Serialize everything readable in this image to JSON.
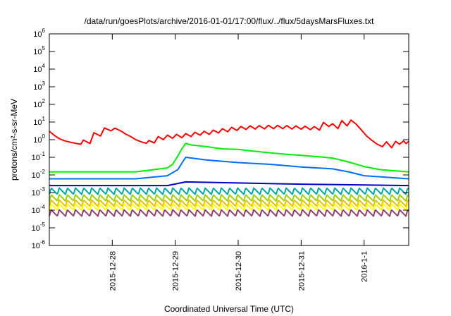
{
  "chart_data": {
    "type": "line",
    "title": "/data/run/goesPlots/archive/2016-01-01/17:00/flux/../flux/5daysMarsFluxes.txt",
    "xlabel": "Coordinated Universal Time (UTC)",
    "ylabel": "protons/cm²-s-sr-MeV",
    "yscale": "log",
    "ylim": [
      1e-06,
      1000000.0
    ],
    "ytick_labels": [
      {
        "base": "10",
        "exp": "-6",
        "value": 1e-06
      },
      {
        "base": "10",
        "exp": "-5",
        "value": 1e-05
      },
      {
        "base": "10",
        "exp": "-4",
        "value": 0.0001
      },
      {
        "base": "10",
        "exp": "-3",
        "value": 0.001
      },
      {
        "base": "10",
        "exp": "-2",
        "value": 0.01
      },
      {
        "base": "10",
        "exp": "-1",
        "value": 0.1
      },
      {
        "base": "10",
        "exp": "0",
        "value": 1
      },
      {
        "base": "10",
        "exp": "1",
        "value": 10
      },
      {
        "base": "10",
        "exp": "2",
        "value": 100
      },
      {
        "base": "10",
        "exp": "3",
        "value": 1000
      },
      {
        "base": "10",
        "exp": "4",
        "value": 10000
      },
      {
        "base": "10",
        "exp": "5",
        "value": 100000
      },
      {
        "base": "10",
        "exp": "6",
        "value": 1000000
      }
    ],
    "xlim": [
      "2015-12-27T00:00Z",
      "2016-01-01T17:00Z"
    ],
    "xtick_labels": [
      {
        "label": "2015-12-28",
        "date": "2015-12-28T00:00Z"
      },
      {
        "label": "2015-12-29",
        "date": "2015-12-29T00:00Z"
      },
      {
        "label": "2015-12-30",
        "date": "2015-12-30T00:00Z"
      },
      {
        "label": "2015-12-31",
        "date": "2015-12-31T00:00Z"
      },
      {
        "label": "2016-1-1",
        "date": "2016-01-01T00:00Z"
      }
    ],
    "grid": false,
    "legend": "none",
    "series": [
      {
        "color": "#ff0000",
        "points": [
          [
            "2015-12-27T00:00Z",
            3.0
          ],
          [
            "2015-12-27T02:00Z",
            1.7
          ],
          [
            "2015-12-27T04:00Z",
            1.1
          ],
          [
            "2015-12-27T06:00Z",
            0.85
          ],
          [
            "2015-12-27T08:00Z",
            0.72
          ],
          [
            "2015-12-27T10:00Z",
            0.62
          ],
          [
            "2015-12-27T12:00Z",
            0.55
          ],
          [
            "2015-12-27T13:00Z",
            0.95
          ],
          [
            "2015-12-27T15:30Z",
            0.6
          ],
          [
            "2015-12-27T17:00Z",
            2.5
          ],
          [
            "2015-12-27T19:30Z",
            1.6
          ],
          [
            "2015-12-27T21:00Z",
            4.6
          ],
          [
            "2015-12-27T23:30Z",
            3.2
          ],
          [
            "2015-12-28T01:00Z",
            4.5
          ],
          [
            "2015-12-28T03:30Z",
            3.0
          ],
          [
            "2015-12-28T05:00Z",
            2.1
          ],
          [
            "2015-12-28T07:00Z",
            1.5
          ],
          [
            "2015-12-28T09:00Z",
            1.0
          ],
          [
            "2015-12-28T11:00Z",
            0.75
          ],
          [
            "2015-12-28T13:00Z",
            0.62
          ],
          [
            "2015-12-28T14:00Z",
            0.9
          ],
          [
            "2015-12-28T16:00Z",
            0.65
          ],
          [
            "2015-12-28T17:30Z",
            1.5
          ],
          [
            "2015-12-28T19:30Z",
            1.0
          ],
          [
            "2015-12-28T21:00Z",
            1.8
          ],
          [
            "2015-12-28T23:00Z",
            1.2
          ],
          [
            "2015-12-29T00:30Z",
            2.0
          ],
          [
            "2015-12-29T02:30Z",
            1.3
          ],
          [
            "2015-12-29T04:00Z",
            2.2
          ],
          [
            "2015-12-29T06:00Z",
            1.5
          ],
          [
            "2015-12-29T07:30Z",
            2.6
          ],
          [
            "2015-12-29T09:30Z",
            1.8
          ],
          [
            "2015-12-29T11:00Z",
            3.0
          ],
          [
            "2015-12-29T13:00Z",
            2.0
          ],
          [
            "2015-12-29T14:30Z",
            3.5
          ],
          [
            "2015-12-29T16:30Z",
            2.4
          ],
          [
            "2015-12-29T18:00Z",
            4.2
          ],
          [
            "2015-12-29T20:00Z",
            2.8
          ],
          [
            "2015-12-29T21:30Z",
            5.0
          ],
          [
            "2015-12-29T23:30Z",
            3.3
          ],
          [
            "2015-12-30T01:00Z",
            5.6
          ],
          [
            "2015-12-30T03:00Z",
            3.8
          ],
          [
            "2015-12-30T04:30Z",
            6.0
          ],
          [
            "2015-12-30T06:30Z",
            4.0
          ],
          [
            "2015-12-30T08:00Z",
            6.2
          ],
          [
            "2015-12-30T10:00Z",
            4.1
          ],
          [
            "2015-12-30T11:30Z",
            6.5
          ],
          [
            "2015-12-30T13:30Z",
            4.2
          ],
          [
            "2015-12-30T15:00Z",
            6.4
          ],
          [
            "2015-12-30T17:00Z",
            4.2
          ],
          [
            "2015-12-30T18:30Z",
            6.3
          ],
          [
            "2015-12-30T20:30Z",
            4.0
          ],
          [
            "2015-12-30T22:00Z",
            6.0
          ],
          [
            "2015-12-31T00:00Z",
            3.9
          ],
          [
            "2015-12-31T01:30Z",
            5.8
          ],
          [
            "2015-12-31T03:30Z",
            3.7
          ],
          [
            "2015-12-31T05:00Z",
            5.5
          ],
          [
            "2015-12-31T07:00Z",
            3.5
          ],
          [
            "2015-12-31T08:30Z",
            9.5
          ],
          [
            "2015-12-31T10:30Z",
            5.6
          ],
          [
            "2015-12-31T12:00Z",
            8.0
          ],
          [
            "2015-12-31T14:00Z",
            4.2
          ],
          [
            "2015-12-31T15:30Z",
            12.0
          ],
          [
            "2015-12-31T17:30Z",
            6.0
          ],
          [
            "2015-12-31T19:00Z",
            13.0
          ],
          [
            "2015-12-31T21:00Z",
            7.5
          ],
          [
            "2015-12-31T23:00Z",
            3.5
          ],
          [
            "2016-01-01T01:00Z",
            1.6
          ],
          [
            "2016-01-01T03:00Z",
            0.9
          ],
          [
            "2016-01-01T05:00Z",
            0.55
          ],
          [
            "2016-01-01T07:00Z",
            0.4
          ],
          [
            "2016-01-01T08:30Z",
            0.75
          ],
          [
            "2016-01-01T10:30Z",
            0.35
          ],
          [
            "2016-01-01T12:00Z",
            0.8
          ],
          [
            "2016-01-01T13:30Z",
            0.55
          ],
          [
            "2016-01-01T15:00Z",
            0.85
          ],
          [
            "2016-01-01T16:00Z",
            0.6
          ],
          [
            "2016-01-01T17:00Z",
            0.8
          ]
        ]
      },
      {
        "color": "#00ee00",
        "points": [
          [
            "2015-12-27T00:00Z",
            0.015
          ],
          [
            "2015-12-28T09:00Z",
            0.015
          ],
          [
            "2015-12-28T21:00Z",
            0.025
          ],
          [
            "2015-12-28T23:00Z",
            0.04
          ],
          [
            "2015-12-29T01:00Z",
            0.12
          ],
          [
            "2015-12-29T02:30Z",
            0.3
          ],
          [
            "2015-12-29T04:00Z",
            0.62
          ],
          [
            "2015-12-29T06:00Z",
            0.5
          ],
          [
            "2015-12-29T12:00Z",
            0.4
          ],
          [
            "2015-12-29T18:00Z",
            0.3
          ],
          [
            "2015-12-30T00:00Z",
            0.28
          ],
          [
            "2015-12-30T06:00Z",
            0.22
          ],
          [
            "2015-12-30T12:00Z",
            0.18
          ],
          [
            "2015-12-30T18:00Z",
            0.15
          ],
          [
            "2015-12-31T00:00Z",
            0.13
          ],
          [
            "2015-12-31T06:00Z",
            0.11
          ],
          [
            "2015-12-31T12:00Z",
            0.09
          ],
          [
            "2015-12-31T18:00Z",
            0.055
          ],
          [
            "2016-01-01T00:00Z",
            0.03
          ],
          [
            "2016-01-01T06:00Z",
            0.02
          ],
          [
            "2016-01-01T17:00Z",
            0.015
          ]
        ]
      },
      {
        "color": "#0070f0",
        "points": [
          [
            "2015-12-27T00:00Z",
            0.006
          ],
          [
            "2015-12-28T09:00Z",
            0.006
          ],
          [
            "2015-12-28T21:00Z",
            0.009
          ],
          [
            "2015-12-29T01:00Z",
            0.02
          ],
          [
            "2015-12-29T03:00Z",
            0.06
          ],
          [
            "2015-12-29T04:00Z",
            0.1
          ],
          [
            "2015-12-29T12:00Z",
            0.07
          ],
          [
            "2015-12-30T00:00Z",
            0.05
          ],
          [
            "2015-12-30T12:00Z",
            0.04
          ],
          [
            "2015-12-31T00:00Z",
            0.028
          ],
          [
            "2015-12-31T12:00Z",
            0.022
          ],
          [
            "2015-12-31T18:00Z",
            0.015
          ],
          [
            "2016-01-01T00:00Z",
            0.009
          ],
          [
            "2016-01-01T17:00Z",
            0.006
          ]
        ]
      },
      {
        "color": "#0000c8",
        "points": [
          [
            "2015-12-27T00:00Z",
            0.0025
          ],
          [
            "2015-12-28T21:00Z",
            0.0025
          ],
          [
            "2015-12-29T04:00Z",
            0.004
          ],
          [
            "2015-12-30T00:00Z",
            0.0035
          ],
          [
            "2015-12-31T00:00Z",
            0.003
          ],
          [
            "2016-01-01T17:00Z",
            0.0025
          ]
        ]
      },
      {
        "color": "#00a8a8",
        "points": [
          [
            "2015-12-27T00:00Z",
            0.0012
          ],
          [
            "2016-01-01T17:00Z",
            0.0012
          ]
        ]
      },
      {
        "color": "#a0d000",
        "points": [
          [
            "2015-12-27T00:00Z",
            0.0005
          ],
          [
            "2016-01-01T17:00Z",
            0.0005
          ]
        ]
      },
      {
        "color": "#e8c000",
        "points": [
          [
            "2015-12-27T00:00Z",
            0.00025
          ],
          [
            "2016-01-01T17:00Z",
            0.00025
          ]
        ]
      },
      {
        "color": "#ffff00",
        "points": [
          [
            "2015-12-27T00:00Z",
            0.00015
          ],
          [
            "2016-01-01T17:00Z",
            0.00015
          ]
        ]
      },
      {
        "color": "#904070",
        "points": [
          [
            "2015-12-27T00:00Z",
            7e-05
          ],
          [
            "2016-01-01T17:00Z",
            7e-05
          ]
        ]
      }
    ]
  }
}
